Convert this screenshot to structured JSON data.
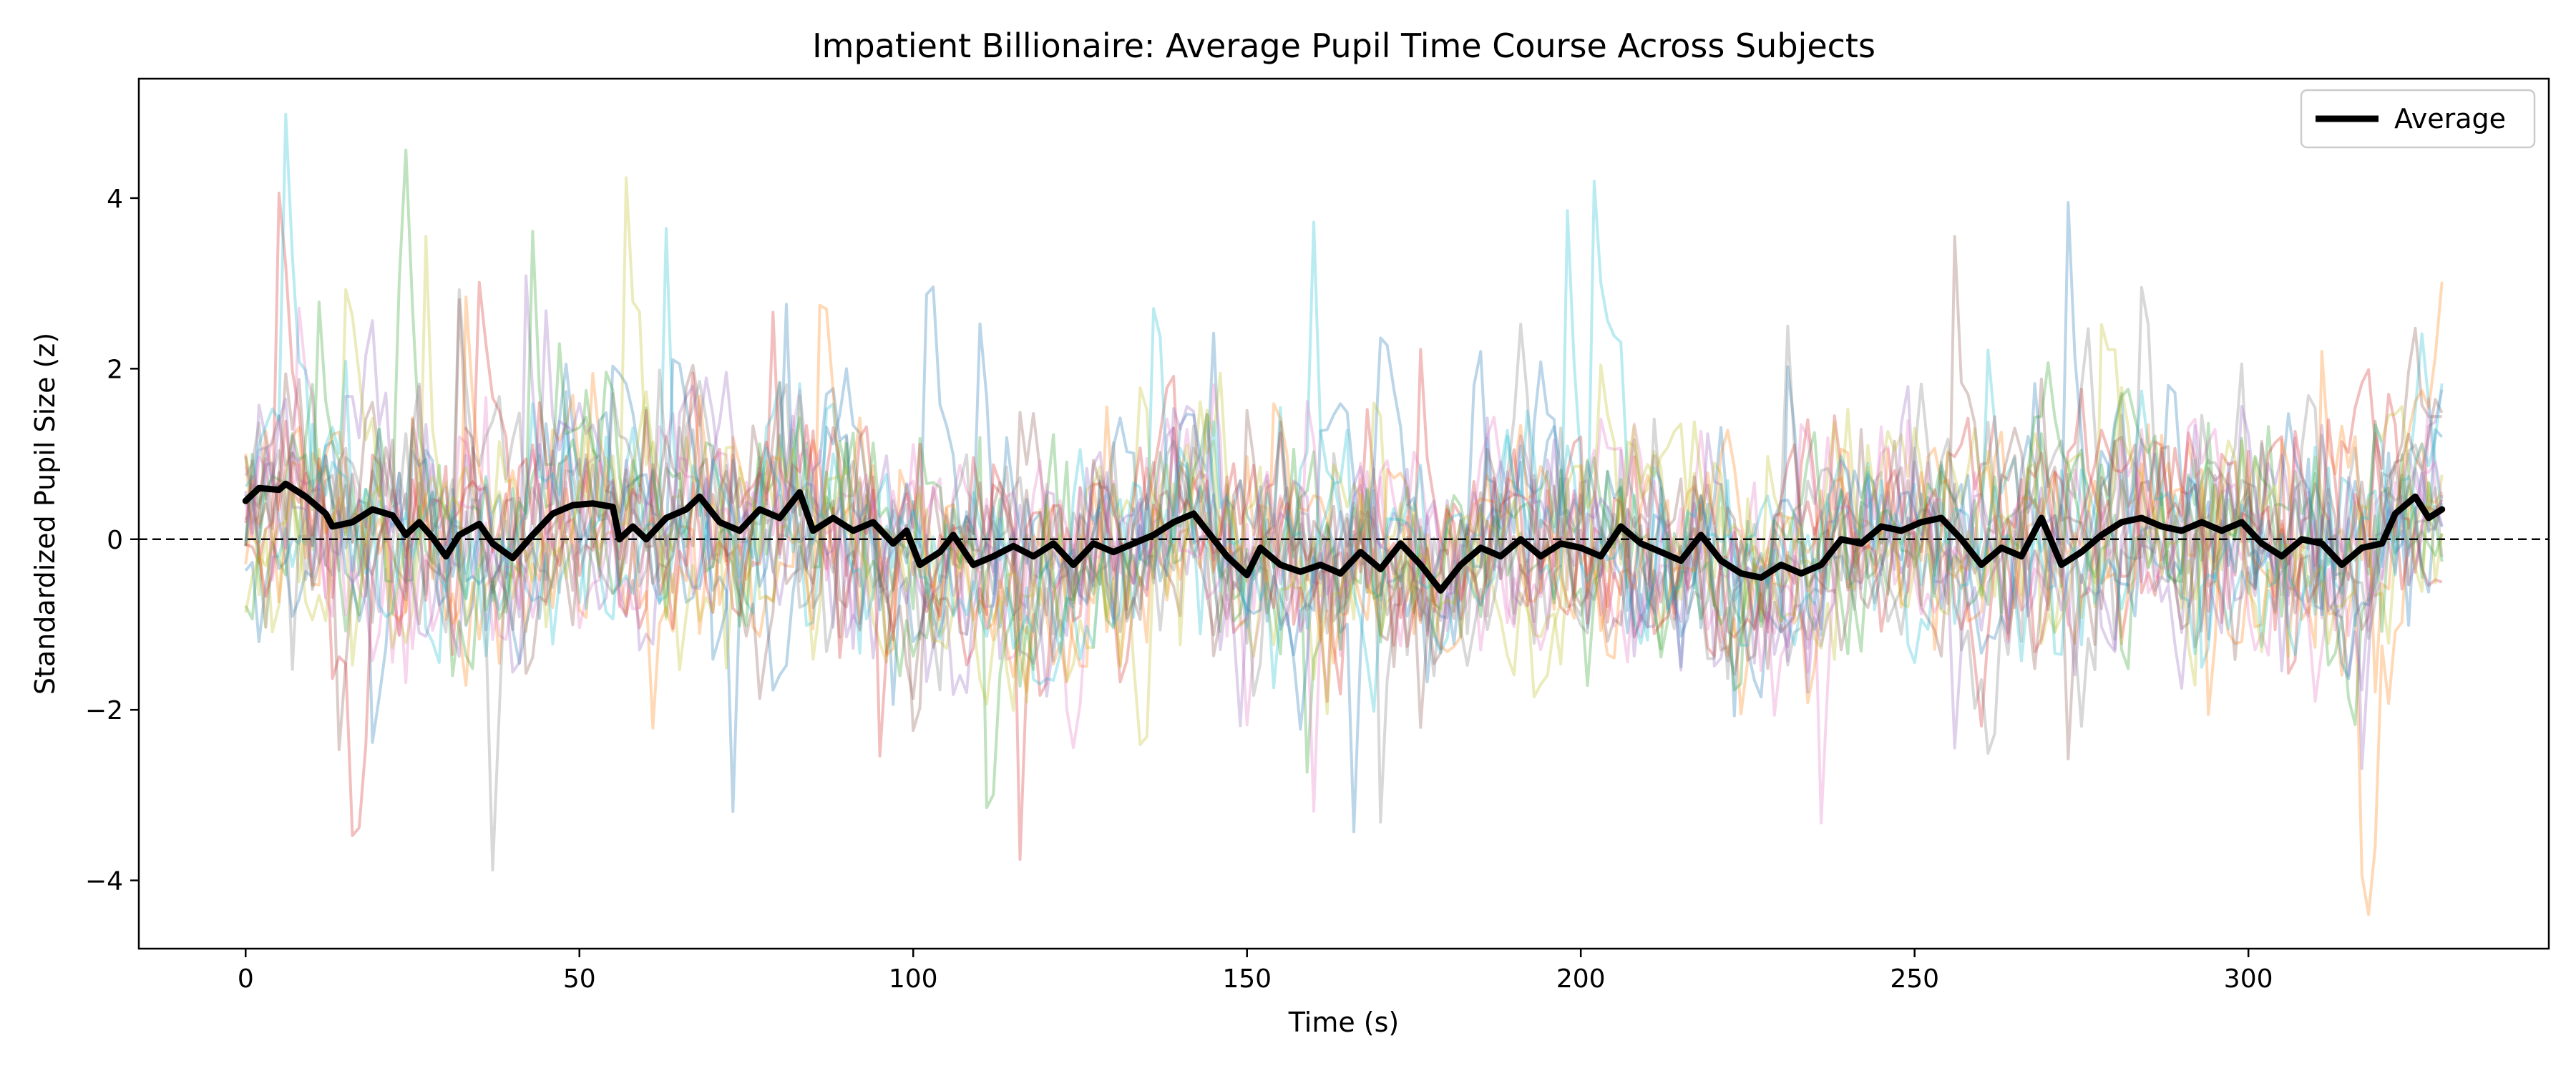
{
  "chart_data": {
    "type": "line",
    "title": "Impatient Billionaire: Average Pupil Time Course Across Subjects",
    "xlabel": "Time (s)",
    "ylabel": "Standardized Pupil Size (z)",
    "xlim": [
      -16,
      345
    ],
    "ylim": [
      -4.8,
      5.4
    ],
    "x_ticks": [
      0,
      50,
      100,
      150,
      200,
      250,
      300
    ],
    "x_tick_labels": [
      "0",
      "50",
      "100",
      "150",
      "200",
      "250",
      "300"
    ],
    "y_ticks": [
      -4,
      -2,
      0,
      2,
      4
    ],
    "y_tick_labels": [
      "−4",
      "−2",
      "0",
      "2",
      "4"
    ],
    "grid": false,
    "reference_line": {
      "y": 0,
      "style": "dashed",
      "color": "#000000"
    },
    "legend": {
      "placement": "top-right",
      "entries": [
        {
          "label": "Average",
          "color": "#000000"
        }
      ]
    },
    "subject_traces": {
      "count": 20,
      "x_start": 0,
      "x_end": 329,
      "x_step": 1,
      "typical_sd": 0.9,
      "alpha": 0.3,
      "colors": [
        "#1f77b4",
        "#ff7f0e",
        "#2ca02c",
        "#d62728",
        "#9467bd",
        "#8c564b",
        "#e377c2",
        "#7f7f7f",
        "#bcbd22",
        "#17becf"
      ]
    },
    "series": [
      {
        "name": "Average",
        "color": "#000000",
        "line_width": "thick",
        "points": [
          [
            0,
            0.45
          ],
          [
            2,
            0.6
          ],
          [
            5,
            0.58
          ],
          [
            6,
            0.65
          ],
          [
            9,
            0.5
          ],
          [
            12,
            0.3
          ],
          [
            13,
            0.15
          ],
          [
            16,
            0.2
          ],
          [
            19,
            0.35
          ],
          [
            22,
            0.28
          ],
          [
            24,
            0.05
          ],
          [
            26,
            0.2
          ],
          [
            28,
            0.02
          ],
          [
            30,
            -0.2
          ],
          [
            32,
            0.05
          ],
          [
            35,
            0.18
          ],
          [
            37,
            -0.05
          ],
          [
            40,
            -0.22
          ],
          [
            43,
            0.05
          ],
          [
            46,
            0.3
          ],
          [
            49,
            0.4
          ],
          [
            52,
            0.42
          ],
          [
            55,
            0.38
          ],
          [
            56,
            0.0
          ],
          [
            58,
            0.15
          ],
          [
            60,
            0.0
          ],
          [
            63,
            0.25
          ],
          [
            66,
            0.35
          ],
          [
            68,
            0.5
          ],
          [
            71,
            0.2
          ],
          [
            74,
            0.1
          ],
          [
            77,
            0.35
          ],
          [
            80,
            0.25
          ],
          [
            83,
            0.55
          ],
          [
            85,
            0.1
          ],
          [
            88,
            0.25
          ],
          [
            91,
            0.1
          ],
          [
            94,
            0.2
          ],
          [
            97,
            -0.05
          ],
          [
            99,
            0.1
          ],
          [
            101,
            -0.3
          ],
          [
            104,
            -0.15
          ],
          [
            106,
            0.05
          ],
          [
            109,
            -0.3
          ],
          [
            112,
            -0.2
          ],
          [
            115,
            -0.08
          ],
          [
            118,
            -0.2
          ],
          [
            121,
            -0.05
          ],
          [
            124,
            -0.3
          ],
          [
            127,
            -0.05
          ],
          [
            130,
            -0.15
          ],
          [
            133,
            -0.05
          ],
          [
            136,
            0.05
          ],
          [
            139,
            0.2
          ],
          [
            142,
            0.3
          ],
          [
            144,
            0.1
          ],
          [
            147,
            -0.2
          ],
          [
            150,
            -0.42
          ],
          [
            152,
            -0.1
          ],
          [
            155,
            -0.3
          ],
          [
            158,
            -0.38
          ],
          [
            161,
            -0.3
          ],
          [
            164,
            -0.4
          ],
          [
            167,
            -0.15
          ],
          [
            170,
            -0.35
          ],
          [
            173,
            -0.05
          ],
          [
            176,
            -0.3
          ],
          [
            179,
            -0.6
          ],
          [
            182,
            -0.3
          ],
          [
            185,
            -0.1
          ],
          [
            188,
            -0.2
          ],
          [
            191,
            0.0
          ],
          [
            194,
            -0.2
          ],
          [
            197,
            -0.05
          ],
          [
            200,
            -0.1
          ],
          [
            203,
            -0.2
          ],
          [
            206,
            0.15
          ],
          [
            209,
            -0.05
          ],
          [
            212,
            -0.15
          ],
          [
            215,
            -0.25
          ],
          [
            218,
            0.05
          ],
          [
            221,
            -0.25
          ],
          [
            224,
            -0.4
          ],
          [
            227,
            -0.45
          ],
          [
            230,
            -0.3
          ],
          [
            233,
            -0.4
          ],
          [
            236,
            -0.3
          ],
          [
            239,
            0.0
          ],
          [
            242,
            -0.05
          ],
          [
            245,
            0.15
          ],
          [
            248,
            0.1
          ],
          [
            251,
            0.2
          ],
          [
            254,
            0.25
          ],
          [
            257,
            0.0
          ],
          [
            260,
            -0.3
          ],
          [
            263,
            -0.1
          ],
          [
            266,
            -0.2
          ],
          [
            269,
            0.25
          ],
          [
            272,
            -0.3
          ],
          [
            275,
            -0.15
          ],
          [
            278,
            0.05
          ],
          [
            281,
            0.2
          ],
          [
            284,
            0.25
          ],
          [
            287,
            0.15
          ],
          [
            290,
            0.1
          ],
          [
            293,
            0.2
          ],
          [
            296,
            0.1
          ],
          [
            299,
            0.2
          ],
          [
            302,
            -0.05
          ],
          [
            305,
            -0.2
          ],
          [
            308,
            0.0
          ],
          [
            311,
            -0.05
          ],
          [
            314,
            -0.3
          ],
          [
            317,
            -0.1
          ],
          [
            320,
            -0.05
          ],
          [
            322,
            0.3
          ],
          [
            325,
            0.5
          ],
          [
            327,
            0.25
          ],
          [
            329,
            0.35
          ]
        ]
      }
    ]
  }
}
